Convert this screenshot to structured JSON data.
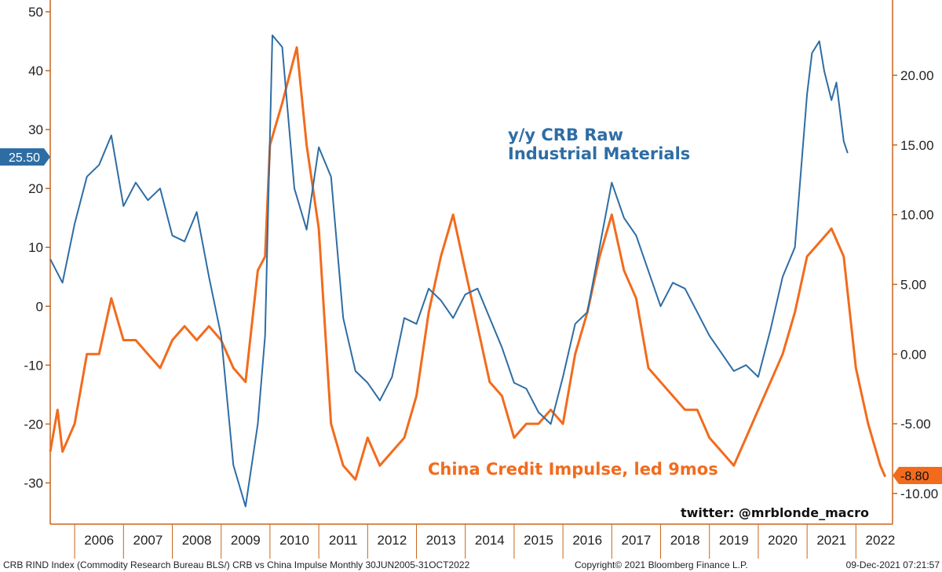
{
  "chart_data": {
    "type": "line",
    "title": "",
    "left_axis": {
      "ylim": [
        -37,
        52
      ],
      "ticks": [
        50,
        40,
        30,
        20,
        10,
        0,
        -10,
        -20,
        -30
      ],
      "tick_labels": [
        "50",
        "40",
        "30",
        "20",
        "10",
        "0",
        "-10",
        "-20",
        "-30"
      ]
    },
    "right_axis": {
      "ylim": [
        -12.2,
        25.4
      ],
      "ticks": [
        20,
        15,
        10,
        5,
        0,
        -5,
        -10
      ],
      "tick_labels": [
        "20.00",
        "15.00",
        "10.00",
        "5.00",
        "0.00",
        "-5.00",
        "-10.00"
      ]
    },
    "x_range": [
      2005.5,
      2022.75
    ],
    "years": [
      "2006",
      "2007",
      "2008",
      "2009",
      "2010",
      "2011",
      "2012",
      "2013",
      "2014",
      "2015",
      "2016",
      "2017",
      "2018",
      "2019",
      "2020",
      "2021",
      "2022"
    ],
    "series": [
      {
        "name": "y/y CRB Raw Industrial Materials",
        "axis": "left",
        "color": "#2e6da4",
        "x": [
          2005.5,
          2005.75,
          2006.0,
          2006.25,
          2006.5,
          2006.75,
          2007.0,
          2007.25,
          2007.5,
          2007.75,
          2008.0,
          2008.25,
          2008.5,
          2008.75,
          2009.0,
          2009.25,
          2009.5,
          2009.75,
          2009.9,
          2010.05,
          2010.25,
          2010.5,
          2010.75,
          2011.0,
          2011.25,
          2011.5,
          2011.75,
          2012.0,
          2012.25,
          2012.5,
          2012.75,
          2013.0,
          2013.25,
          2013.5,
          2013.75,
          2014.0,
          2014.25,
          2014.5,
          2014.75,
          2015.0,
          2015.25,
          2015.5,
          2015.75,
          2016.0,
          2016.25,
          2016.5,
          2016.75,
          2017.0,
          2017.25,
          2017.5,
          2017.75,
          2018.0,
          2018.25,
          2018.5,
          2018.75,
          2019.0,
          2019.25,
          2019.5,
          2019.75,
          2020.0,
          2020.25,
          2020.5,
          2020.75,
          2021.0,
          2021.1,
          2021.25,
          2021.35,
          2021.5,
          2021.6,
          2021.75,
          2021.83
        ],
        "values": [
          8,
          4,
          14,
          22,
          24,
          29,
          17,
          21,
          18,
          20,
          12,
          11,
          16,
          5,
          -5,
          -27,
          -34,
          -20,
          -5,
          46,
          44,
          20,
          13,
          27,
          22,
          -2,
          -11,
          -13,
          -16,
          -12,
          -2,
          -3,
          3,
          1,
          -2,
          2,
          3,
          -2,
          -7,
          -13,
          -14,
          -18,
          -20,
          -12,
          -3,
          -1,
          10,
          21,
          15,
          12,
          6,
          0,
          4,
          3,
          -1,
          -5,
          -8,
          -11,
          -10,
          -12,
          -4,
          5,
          10,
          36,
          43,
          45,
          40,
          35,
          38,
          28,
          26
        ]
      },
      {
        "name": "China Credit Impulse, led 9mos",
        "axis": "right",
        "color": "#f26b1d",
        "x": [
          2005.5,
          2005.65,
          2005.75,
          2006.0,
          2006.25,
          2006.5,
          2006.75,
          2007.0,
          2007.25,
          2007.5,
          2007.75,
          2008.0,
          2008.25,
          2008.5,
          2008.75,
          2009.0,
          2009.25,
          2009.5,
          2009.75,
          2009.9,
          2010.0,
          2010.25,
          2010.4,
          2010.55,
          2010.75,
          2011.0,
          2011.25,
          2011.5,
          2011.75,
          2012.0,
          2012.25,
          2012.5,
          2012.75,
          2013.0,
          2013.25,
          2013.5,
          2013.75,
          2014.0,
          2014.25,
          2014.5,
          2014.75,
          2015.0,
          2015.25,
          2015.5,
          2015.75,
          2016.0,
          2016.25,
          2016.5,
          2016.75,
          2017.0,
          2017.25,
          2017.5,
          2017.75,
          2018.0,
          2018.25,
          2018.5,
          2018.75,
          2019.0,
          2019.25,
          2019.5,
          2019.75,
          2020.0,
          2020.25,
          2020.5,
          2020.75,
          2021.0,
          2021.25,
          2021.5,
          2021.75,
          2022.0,
          2022.25,
          2022.5,
          2022.6
        ],
        "values": [
          -7,
          -4,
          -7,
          -5,
          0,
          0,
          4,
          1,
          1,
          0,
          -1,
          1,
          2,
          1,
          2,
          1,
          -1,
          -2,
          6,
          7,
          15,
          18,
          20,
          22,
          15,
          9,
          -5,
          -8,
          -9,
          -6,
          -8,
          -7,
          -6,
          -3,
          3,
          7,
          10,
          6,
          2,
          -2,
          -3,
          -6,
          -5,
          -5,
          -4,
          -5,
          0,
          3,
          7,
          10,
          6,
          4,
          -1,
          -2,
          -3,
          -4,
          -4,
          -6,
          -7,
          -8,
          -6,
          -4,
          -2,
          0,
          3,
          7,
          8,
          9,
          7,
          -1,
          -5,
          -8,
          -8.8
        ]
      }
    ],
    "annotations": {
      "blue_line1": "y/y CRB Raw",
      "blue_line2": "Industrial Materials",
      "orange": "China Credit Impulse, led 9mos",
      "handle": "twitter: @mrblonde_macro"
    },
    "last_value_tags": {
      "left": "25.50",
      "right": "-8.80"
    },
    "footer": {
      "left": "CRB RIND Index (Commodity Research Bureau BLS/) CRB vs China Impulse  Monthly 30JUN2005-31OCT2022",
      "center": "Copyright© 2021 Bloomberg Finance L.P.",
      "right": "09-Dec-2021 07:21:57"
    },
    "colors": {
      "blue": "#2e6da4",
      "orange": "#f26b1d",
      "axis": "#c8651b"
    }
  }
}
